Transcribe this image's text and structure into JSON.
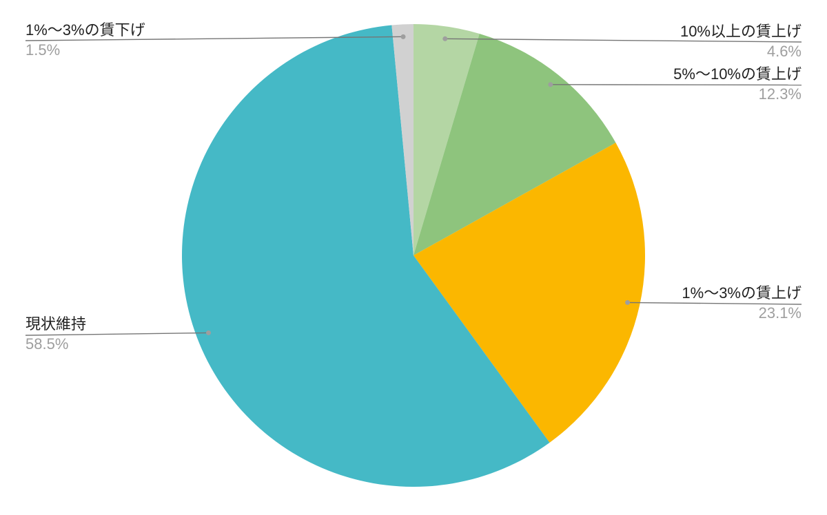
{
  "chart_data": {
    "type": "pie",
    "start_angle_deg": 0,
    "direction": "clockwise",
    "legend_position": "none",
    "label_style": "outside-callout-with-leader-line",
    "slices": [
      {
        "label": "10%以上の賃上げ",
        "value": 4.6,
        "display": "4.6%",
        "color": "#b4d6a4"
      },
      {
        "label": "5%〜10%の賃上げ",
        "value": 12.3,
        "display": "12.3%",
        "color": "#8ec47d"
      },
      {
        "label": "1%〜3%の賃上げ",
        "value": 23.1,
        "display": "23.1%",
        "color": "#fbb700"
      },
      {
        "label": "現状維持",
        "value": 58.5,
        "display": "58.5%",
        "color": "#45b9c6"
      },
      {
        "label": "1%〜3%の賃下げ",
        "value": 1.5,
        "display": "1.5%",
        "color": "#d1d1d1"
      }
    ]
  },
  "colors": {
    "background": "#ffffff",
    "label_text": "#212121",
    "value_text": "#9e9e9e",
    "leader_line": "#757575",
    "leader_dot": "#9e9e9e"
  }
}
